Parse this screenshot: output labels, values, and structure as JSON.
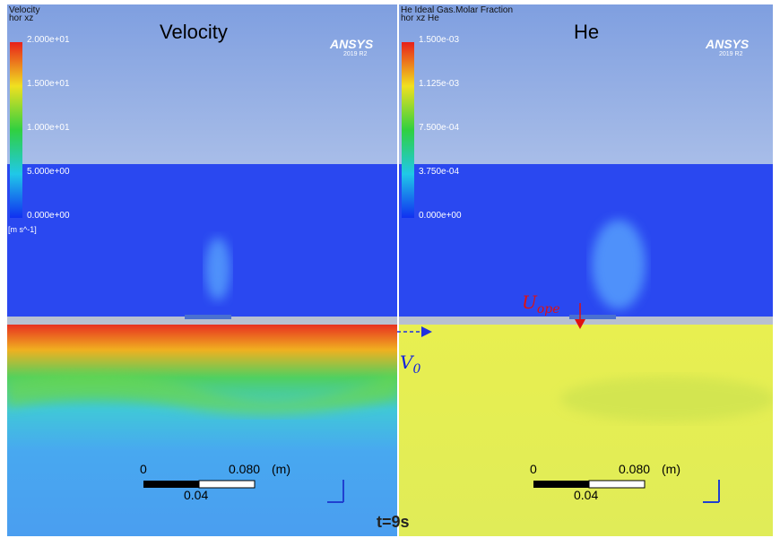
{
  "panels": [
    {
      "heading": "Velocity",
      "legend": {
        "title": "Velocity",
        "subtitle": "hor xz",
        "ticks": [
          "2.000e+01",
          "1.500e+01",
          "1.000e+01",
          "5.000e+00",
          "0.000e+00"
        ],
        "unit": "[m s^-1]"
      },
      "logo": {
        "name": "ANSYS",
        "version": "2019 R2"
      },
      "scale_bar": {
        "start": "0",
        "end": "0.080",
        "unit": "(m)",
        "mid": "0.04"
      }
    },
    {
      "heading": "He",
      "legend": {
        "title": "He Ideal Gas.Molar Fraction",
        "subtitle": "hor xz He",
        "ticks": [
          "1.500e-03",
          "1.125e-03",
          "7.500e-04",
          "3.750e-04",
          "0.000e+00"
        ]
      },
      "logo": {
        "name": "ANSYS",
        "version": "2019 R2"
      },
      "scale_bar": {
        "start": "0",
        "end": "0.080",
        "unit": "(m)",
        "mid": "0.04"
      }
    }
  ],
  "annotations": {
    "time": "t=9s",
    "v0": {
      "base": "V",
      "sub": "0"
    },
    "u_ope": {
      "base": "U",
      "sub": "ope"
    }
  }
}
